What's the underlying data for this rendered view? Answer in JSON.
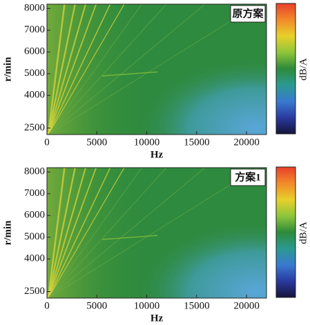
{
  "chart_data": [
    {
      "type": "heatmap",
      "title": "原方案",
      "xlabel": "Hz",
      "ylabel": "r/min",
      "colorbar_label": "dB/A",
      "xlim": [
        0,
        22000
      ],
      "ylim": [
        2200,
        8200
      ],
      "xticks": [
        0,
        5000,
        10000,
        15000,
        20000
      ],
      "yticks": [
        2500,
        4000,
        5000,
        6000,
        7000,
        8000
      ],
      "colormap": [
        "#e8402a",
        "#f28a2a",
        "#e8d02a",
        "#8ec63a",
        "#2e8a3a",
        "#2a9a90",
        "#3a7ad0",
        "#2a3aa0",
        "#14143a"
      ]
    },
    {
      "type": "heatmap",
      "title": "方案1",
      "xlabel": "Hz",
      "ylabel": "r/min",
      "colorbar_label": "dB/A",
      "xlim": [
        0,
        22000
      ],
      "ylim": [
        2200,
        8200
      ],
      "xticks": [
        0,
        5000,
        10000,
        15000,
        20000
      ],
      "yticks": [
        2500,
        4000,
        5000,
        6000,
        7000,
        8000
      ],
      "colormap": [
        "#e8402a",
        "#f28a2a",
        "#e8d02a",
        "#8ec63a",
        "#2e8a3a",
        "#2a9a90",
        "#3a7ad0",
        "#2a3aa0",
        "#14143a"
      ]
    }
  ]
}
